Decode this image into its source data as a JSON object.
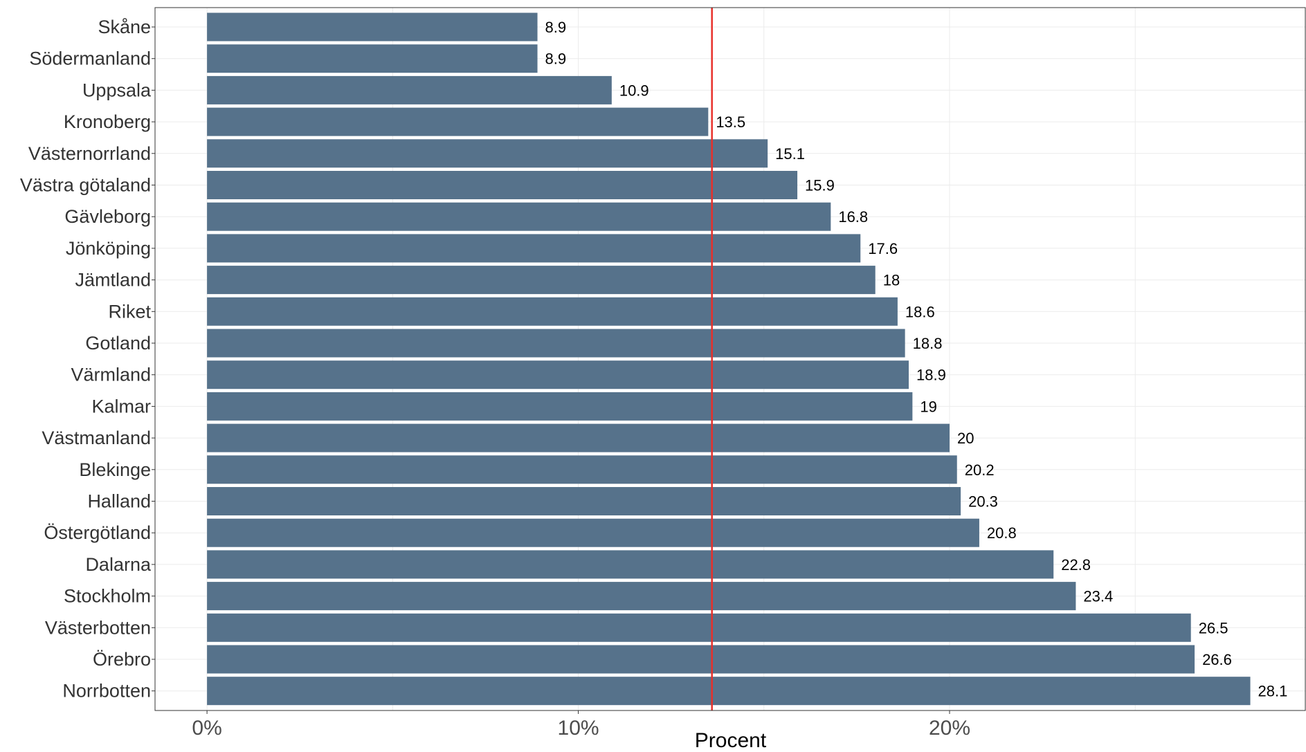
{
  "chart_data": {
    "type": "bar",
    "orientation": "horizontal",
    "title": "",
    "xlabel": "Procent",
    "ylabel": "",
    "xlim": [
      -0.014,
      0.296
    ],
    "x_ticks": [
      {
        "value": 0,
        "label": "0%"
      },
      {
        "value": 0.1,
        "label": "10%"
      },
      {
        "value": 0.2,
        "label": "20%"
      }
    ],
    "grid": true,
    "reference_line": {
      "value": 0.136,
      "color": "#e8302a"
    },
    "bar_color": "#56728b",
    "categories": [
      "Skåne",
      "Södermanland",
      "Uppsala",
      "Kronoberg",
      "Västernorrland",
      "Västra götaland",
      "Gävleborg",
      "Jönköping",
      "Jämtland",
      "Riket",
      "Gotland",
      "Värmland",
      "Kalmar",
      "Västmanland",
      "Blekinge",
      "Halland",
      "Östergötland",
      "Dalarna",
      "Stockholm",
      "Västerbotten",
      "Örebro",
      "Norrbotten"
    ],
    "values": [
      8.9,
      8.9,
      10.9,
      13.5,
      15.1,
      15.9,
      16.8,
      17.6,
      18,
      18.6,
      18.8,
      18.9,
      19,
      20,
      20.2,
      20.3,
      20.8,
      22.8,
      23.4,
      26.5,
      26.6,
      28.1
    ],
    "value_labels": [
      "8.9",
      "8.9",
      "10.9",
      "13.5",
      "15.1",
      "15.9",
      "16.8",
      "17.6",
      "18",
      "18.6",
      "18.8",
      "18.9",
      "19",
      "20",
      "20.2",
      "20.3",
      "20.8",
      "22.8",
      "23.4",
      "26.5",
      "26.6",
      "28.1"
    ]
  }
}
